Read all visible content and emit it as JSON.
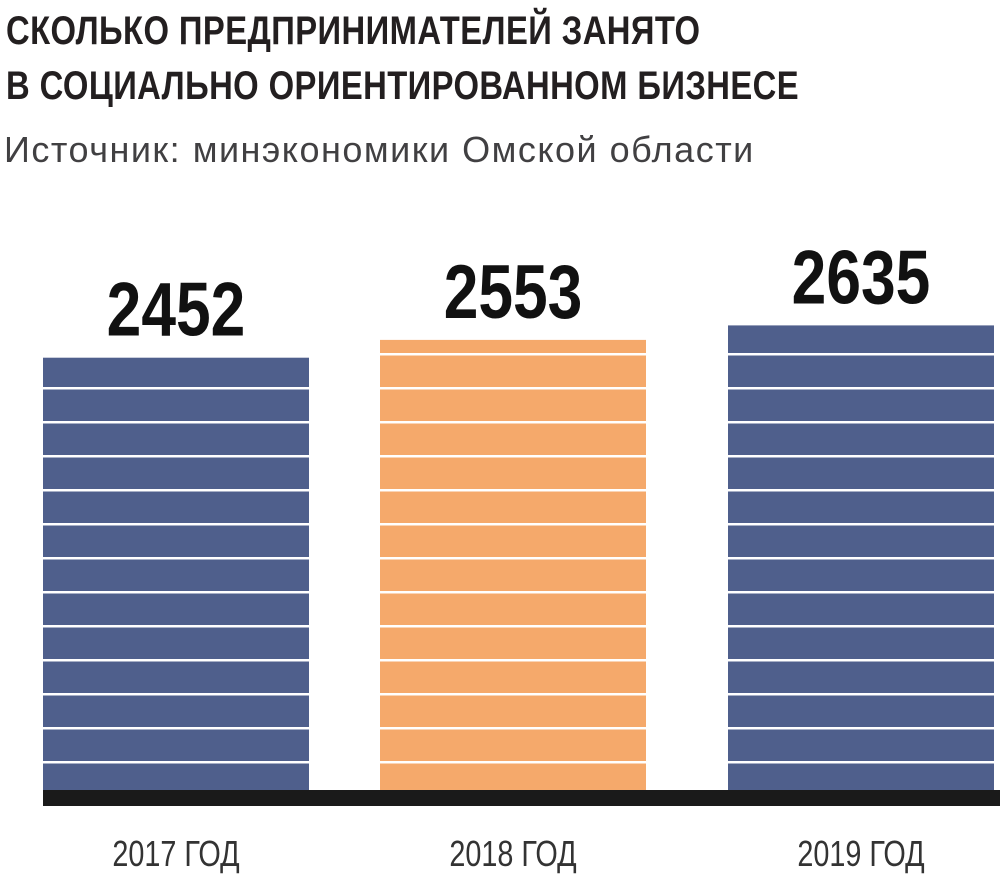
{
  "header": {
    "title_line1": "СКОЛЬКО ПРЕДПРИНИМАТЕЛЕЙ ЗАНЯТО",
    "title_line2": "В СОЦИАЛЬНО ОРИЕНТИРОВАННОМ БИЗНЕСЕ",
    "source": "Источник: минэкономики Омской области"
  },
  "colors": {
    "default_bar": "#4f5f8c",
    "highlight_bar": "#f5a96b",
    "stripe": "#ffffff",
    "baseline": "#1a1a1a"
  },
  "chart_data": {
    "type": "bar",
    "categories": [
      "2017 ГОД",
      "2018 ГОД",
      "2019 ГОД"
    ],
    "values": [
      2452,
      2553,
      2635
    ],
    "value_labels": [
      "2452",
      "2553",
      "2635"
    ],
    "highlight_index": 1,
    "title": "СКОЛЬКО ПРЕДПРИНИМАТЕЛЕЙ ЗАНЯТО В СОЦИАЛЬНО ОРИЕНТИРОВАННОМ БИЗНЕСЕ",
    "xlabel": "",
    "ylabel": "",
    "grid": false,
    "legend": "none"
  }
}
